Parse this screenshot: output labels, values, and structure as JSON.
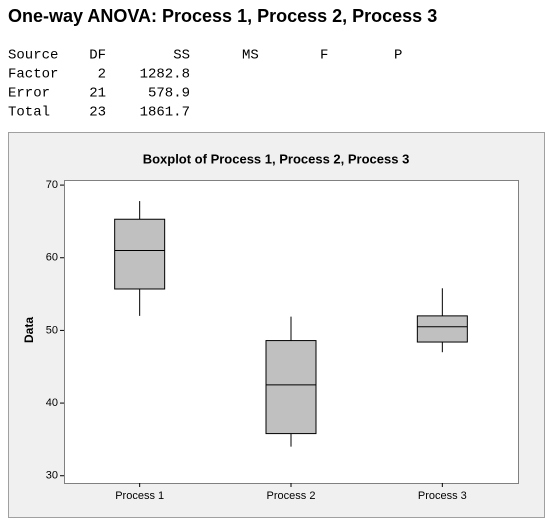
{
  "title": "One-way ANOVA: Process 1, Process 2, Process 3",
  "table": {
    "columns": [
      "Source",
      "DF",
      "SS",
      "MS",
      "F",
      "P"
    ],
    "rows": [
      [
        "Factor",
        "2",
        "1282.8"
      ],
      [
        "Error",
        "21",
        "578.9"
      ],
      [
        "Total",
        "23",
        "1861.7"
      ]
    ]
  },
  "chart_data": {
    "type": "boxplot",
    "title": "Boxplot of Process 1, Process 2, Process 3",
    "y_label": "Data",
    "categories": [
      "Process 1",
      "Process 2",
      "Process 3"
    ],
    "boxes": [
      {
        "min": 52.0,
        "q1": 55.7,
        "median": 61.0,
        "q3": 65.3,
        "max": 67.8
      },
      {
        "min": 34.0,
        "q1": 35.8,
        "median": 42.5,
        "q3": 48.6,
        "max": 51.9
      },
      {
        "min": 47.0,
        "q1": 48.4,
        "median": 50.5,
        "q3": 52.0,
        "max": 55.8
      }
    ],
    "color": "#c0c0c0",
    "ylim": [
      29,
      70.7
    ],
    "yticks": [
      30,
      40,
      50,
      60,
      70
    ]
  }
}
